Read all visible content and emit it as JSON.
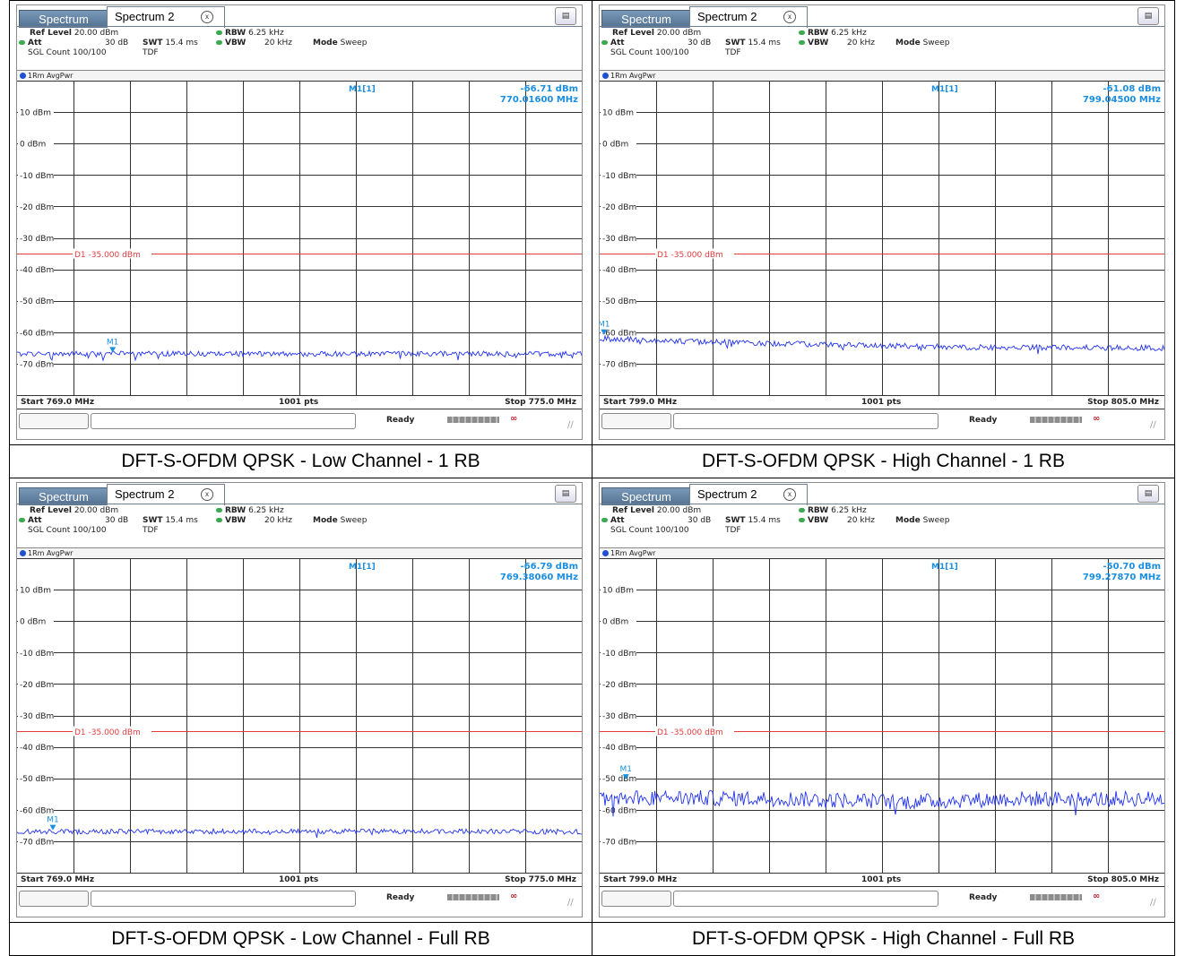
{
  "captions": [
    "DFT-S-OFDM QPSK - Low Channel - 1 RB",
    "DFT-S-OFDM QPSK - High Channel - 1 RB",
    "DFT-S-OFDM QPSK - Low Channel - Full RB",
    "DFT-S-OFDM QPSK - High Channel - Full RB"
  ],
  "common": {
    "tab1": "Spectrum",
    "tab2": "Spectrum 2",
    "tab_close": "x",
    "ref_level_label": "Ref Level",
    "ref_level_value": "20.00 dBm",
    "att_label": "Att",
    "att_value": "30 dB",
    "swt_label": "SWT",
    "swt_value": "15.4 ms",
    "rbw_label": "RBW",
    "rbw_value": "6.25 kHz",
    "vbw_label": "VBW",
    "vbw_value": "20 kHz",
    "mode_label": "Mode",
    "mode_value": "Sweep",
    "sgl_count": "SGL Count 100/100",
    "tdf": "TDF",
    "trace_label": "1Rm AvgPwr",
    "points": "1001 pts",
    "status": "Ready",
    "marker_name": "M1[1]",
    "marker_tag": "M1",
    "limit_label": "D1 -35.000 dBm",
    "y_ticks": [
      "10 dBm",
      "0 dBm",
      "-10 dBm",
      "-20 dBm",
      "-30 dBm",
      "-40 dBm",
      "-50 dBm",
      "-60 dBm",
      "-70 dBm"
    ],
    "corner_icon": "grid-menu-icon"
  },
  "panels": [
    {
      "marker_level": "-66.71 dBm",
      "marker_freq": "770.01600 MHz",
      "start": "Start 769.0 MHz",
      "stop": "Stop 775.0 MHz"
    },
    {
      "marker_level": "-61.08 dBm",
      "marker_freq": "799.04500 MHz",
      "start": "Start 799.0 MHz",
      "stop": "Stop 805.0 MHz"
    },
    {
      "marker_level": "-66.79 dBm",
      "marker_freq": "769.38060 MHz",
      "start": "Start 769.0 MHz",
      "stop": "Stop 775.0 MHz"
    },
    {
      "marker_level": "-50.70 dBm",
      "marker_freq": "799.27870 MHz",
      "start": "Start 799.0 MHz",
      "stop": "Stop 805.0 MHz"
    }
  ],
  "chart_data": [
    {
      "type": "line",
      "xlabel": "",
      "ylabel": "",
      "x_range_mhz": [
        769.0,
        775.0
      ],
      "ylim": [
        -80,
        20
      ],
      "y_ticks": [
        10,
        0,
        -10,
        -20,
        -30,
        -40,
        -50,
        -60,
        -70
      ],
      "limit_line_dbm": -35.0,
      "marker": {
        "freq_mhz": 770.016,
        "level_dbm": -66.71
      },
      "series": [
        {
          "trace": "1Rm AvgPwr",
          "profile": [
            [
              769.0,
              -66.9
            ],
            [
              770.5,
              -66.8
            ],
            [
              772.0,
              -66.9
            ],
            [
              773.5,
              -66.8
            ],
            [
              775.0,
              -66.9
            ]
          ],
          "noise_db": 0.8
        }
      ]
    },
    {
      "type": "line",
      "xlabel": "",
      "ylabel": "",
      "x_range_mhz": [
        799.0,
        805.0
      ],
      "ylim": [
        -80,
        20
      ],
      "y_ticks": [
        10,
        0,
        -10,
        -20,
        -30,
        -40,
        -50,
        -60,
        -70
      ],
      "limit_line_dbm": -35.0,
      "marker": {
        "freq_mhz": 799.045,
        "level_dbm": -61.08
      },
      "series": [
        {
          "trace": "1Rm AvgPwr",
          "profile": [
            [
              799.0,
              -62.0
            ],
            [
              800.0,
              -63.0
            ],
            [
              801.5,
              -64.0
            ],
            [
              803.0,
              -64.8
            ],
            [
              805.0,
              -65.0
            ]
          ],
          "noise_db": 0.9
        }
      ]
    },
    {
      "type": "line",
      "xlabel": "",
      "ylabel": "",
      "x_range_mhz": [
        769.0,
        775.0
      ],
      "ylim": [
        -80,
        20
      ],
      "y_ticks": [
        10,
        0,
        -10,
        -20,
        -30,
        -40,
        -50,
        -60,
        -70
      ],
      "limit_line_dbm": -35.0,
      "marker": {
        "freq_mhz": 769.3806,
        "level_dbm": -66.79
      },
      "series": [
        {
          "trace": "1Rm AvgPwr",
          "profile": [
            [
              769.0,
              -67.0
            ],
            [
              770.5,
              -66.9
            ],
            [
              772.0,
              -66.9
            ],
            [
              773.5,
              -66.8
            ],
            [
              775.0,
              -67.0
            ]
          ],
          "noise_db": 0.8
        }
      ]
    },
    {
      "type": "line",
      "xlabel": "",
      "ylabel": "",
      "x_range_mhz": [
        799.0,
        805.0
      ],
      "ylim": [
        -80,
        20
      ],
      "y_ticks": [
        10,
        0,
        -10,
        -20,
        -30,
        -40,
        -50,
        -60,
        -70
      ],
      "limit_line_dbm": -35.0,
      "marker": {
        "freq_mhz": 799.2787,
        "level_dbm": -50.7
      },
      "series": [
        {
          "trace": "1Rm AvgPwr",
          "profile": [
            [
              799.0,
              -56.0
            ],
            [
              801.0,
              -56.5
            ],
            [
              802.2,
              -57.5
            ],
            [
              803.5,
              -56.5
            ],
            [
              805.0,
              -56.5
            ]
          ],
          "noise_db": 2.5
        }
      ]
    }
  ]
}
